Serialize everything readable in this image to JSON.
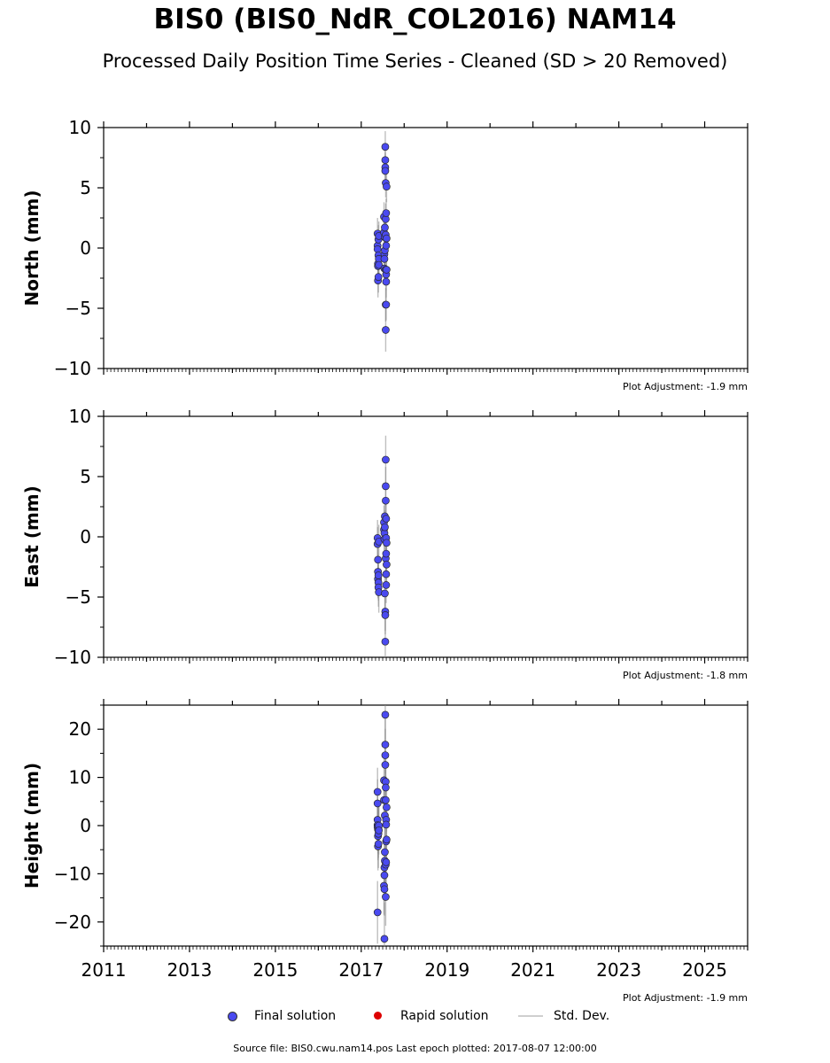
{
  "title": "BIS0 (BIS0_NdR_COL2016) NAM14",
  "subtitle": "Processed Daily Position Time Series - Cleaned (SD > 20 Removed)",
  "legend": {
    "final": "Final solution",
    "rapid": "Rapid solution",
    "std": "Std. Dev."
  },
  "colors": {
    "final": "#4a4af0",
    "rapid": "#dd0000",
    "std": "#cfcfcf"
  },
  "footer": "Source file: BIS0.cwu.nam14.pos  Last epoch plotted: 2017-08-07 12:00:00",
  "chart_data": [
    {
      "type": "scatter",
      "ylabel": "North (mm)",
      "xlim": [
        2011,
        2026
      ],
      "ylim": [
        -10,
        10
      ],
      "yticks": [
        -10,
        -5,
        0,
        5,
        10
      ],
      "xticks": [
        2011,
        2013,
        2015,
        2017,
        2019,
        2021,
        2023,
        2025
      ],
      "show_x_ticklabels": false,
      "adjustment": "Plot Adjustment: -1.9 mm",
      "series": [
        {
          "name": "Final solution",
          "points": [
            {
              "x": 2017.38,
              "y": 1.2,
              "sd": 1.3
            },
            {
              "x": 2017.38,
              "y": 0.2,
              "sd": 1.2
            },
            {
              "x": 2017.38,
              "y": -0.1,
              "sd": 1.2
            },
            {
              "x": 2017.39,
              "y": -1.3,
              "sd": 1.3
            },
            {
              "x": 2017.39,
              "y": -1.5,
              "sd": 1.2
            },
            {
              "x": 2017.39,
              "y": -2.7,
              "sd": 1.4
            },
            {
              "x": 2017.4,
              "y": 0.7,
              "sd": 1.2
            },
            {
              "x": 2017.4,
              "y": -0.6,
              "sd": 1.3
            },
            {
              "x": 2017.4,
              "y": -2.4,
              "sd": 1.3
            },
            {
              "x": 2017.41,
              "y": 1.0,
              "sd": 1.2
            },
            {
              "x": 2017.41,
              "y": -0.9,
              "sd": 1.2
            },
            {
              "x": 2017.41,
              "y": -1.4,
              "sd": 1.3
            },
            {
              "x": 2017.53,
              "y": 2.6,
              "sd": 1.2
            },
            {
              "x": 2017.53,
              "y": 1.3,
              "sd": 1.3
            },
            {
              "x": 2017.54,
              "y": -0.5,
              "sd": 1.2
            },
            {
              "x": 2017.54,
              "y": -0.9,
              "sd": 1.3
            },
            {
              "x": 2017.54,
              "y": -1.7,
              "sd": 1.2
            },
            {
              "x": 2017.55,
              "y": 1.7,
              "sd": 1.3
            },
            {
              "x": 2017.55,
              "y": 0.9,
              "sd": 1.2
            },
            {
              "x": 2017.55,
              "y": -0.2,
              "sd": 1.2
            },
            {
              "x": 2017.56,
              "y": 8.4,
              "sd": 1.3
            },
            {
              "x": 2017.56,
              "y": 7.3,
              "sd": 1.3
            },
            {
              "x": 2017.56,
              "y": 6.7,
              "sd": 1.2
            },
            {
              "x": 2017.56,
              "y": 6.4,
              "sd": 1.2
            },
            {
              "x": 2017.57,
              "y": 5.4,
              "sd": 1.2
            },
            {
              "x": 2017.57,
              "y": 2.4,
              "sd": 1.3
            },
            {
              "x": 2017.57,
              "y": 1.1,
              "sd": 1.2
            },
            {
              "x": 2017.57,
              "y": -1.8,
              "sd": 1.3
            },
            {
              "x": 2017.57,
              "y": -4.7,
              "sd": 1.4
            },
            {
              "x": 2017.57,
              "y": -6.8,
              "sd": 1.8
            },
            {
              "x": 2017.58,
              "y": 2.9,
              "sd": 1.2
            },
            {
              "x": 2017.58,
              "y": 0.2,
              "sd": 1.2
            },
            {
              "x": 2017.58,
              "y": -2.2,
              "sd": 1.3
            },
            {
              "x": 2017.58,
              "y": -2.8,
              "sd": 1.3
            },
            {
              "x": 2017.58,
              "y": -4.7,
              "sd": 1.3
            },
            {
              "x": 2017.59,
              "y": 5.1,
              "sd": 1.3
            },
            {
              "x": 2017.59,
              "y": 0.8,
              "sd": 1.2
            },
            {
              "x": 2017.59,
              "y": -1.8,
              "sd": 1.2
            }
          ]
        }
      ]
    },
    {
      "type": "scatter",
      "ylabel": "East (mm)",
      "xlim": [
        2011,
        2026
      ],
      "ylim": [
        -10,
        10
      ],
      "yticks": [
        -10,
        -5,
        0,
        5,
        10
      ],
      "xticks": [
        2011,
        2013,
        2015,
        2017,
        2019,
        2021,
        2023,
        2025
      ],
      "show_x_ticklabels": false,
      "adjustment": "Plot Adjustment: -1.8 mm",
      "series": [
        {
          "name": "Final solution",
          "points": [
            {
              "x": 2017.38,
              "y": -0.1,
              "sd": 1.5
            },
            {
              "x": 2017.38,
              "y": -0.6,
              "sd": 1.4
            },
            {
              "x": 2017.39,
              "y": -1.9,
              "sd": 1.5
            },
            {
              "x": 2017.39,
              "y": -2.9,
              "sd": 1.5
            },
            {
              "x": 2017.39,
              "y": -3.5,
              "sd": 1.6
            },
            {
              "x": 2017.4,
              "y": -3.2,
              "sd": 1.5
            },
            {
              "x": 2017.4,
              "y": -3.8,
              "sd": 1.5
            },
            {
              "x": 2017.4,
              "y": -4.2,
              "sd": 1.6
            },
            {
              "x": 2017.41,
              "y": -4.6,
              "sd": 1.7
            },
            {
              "x": 2017.41,
              "y": -0.4,
              "sd": 1.4
            },
            {
              "x": 2017.53,
              "y": 0.6,
              "sd": 1.4
            },
            {
              "x": 2017.53,
              "y": 1.2,
              "sd": 1.4
            },
            {
              "x": 2017.54,
              "y": 0.3,
              "sd": 1.4
            },
            {
              "x": 2017.54,
              "y": -0.2,
              "sd": 1.4
            },
            {
              "x": 2017.55,
              "y": 1.7,
              "sd": 1.4
            },
            {
              "x": 2017.55,
              "y": 0.8,
              "sd": 1.4
            },
            {
              "x": 2017.55,
              "y": -4.7,
              "sd": 1.5
            },
            {
              "x": 2017.56,
              "y": -8.7,
              "sd": 1.9
            },
            {
              "x": 2017.56,
              "y": -6.2,
              "sd": 1.6
            },
            {
              "x": 2017.56,
              "y": -6.5,
              "sd": 1.6
            },
            {
              "x": 2017.57,
              "y": 6.4,
              "sd": 2.0
            },
            {
              "x": 2017.57,
              "y": 4.2,
              "sd": 1.6
            },
            {
              "x": 2017.57,
              "y": 3.0,
              "sd": 1.5
            },
            {
              "x": 2017.57,
              "y": -1.8,
              "sd": 1.4
            },
            {
              "x": 2017.58,
              "y": 1.5,
              "sd": 1.4
            },
            {
              "x": 2017.58,
              "y": -0.1,
              "sd": 1.4
            },
            {
              "x": 2017.58,
              "y": -1.4,
              "sd": 1.4
            },
            {
              "x": 2017.58,
              "y": -3.1,
              "sd": 1.5
            },
            {
              "x": 2017.58,
              "y": -4.0,
              "sd": 1.5
            },
            {
              "x": 2017.59,
              "y": -0.5,
              "sd": 1.4
            },
            {
              "x": 2017.59,
              "y": -2.3,
              "sd": 1.5
            }
          ]
        }
      ]
    },
    {
      "type": "scatter",
      "ylabel": "Height (mm)",
      "xlim": [
        2011,
        2026
      ],
      "ylim": [
        -25,
        25
      ],
      "yticks": [
        -20,
        -10,
        0,
        10,
        20
      ],
      "xticks": [
        2011,
        2013,
        2015,
        2017,
        2019,
        2021,
        2023,
        2025
      ],
      "show_x_ticklabels": true,
      "adjustment": "Plot Adjustment: -1.9 mm",
      "series": [
        {
          "name": "Final solution",
          "points": [
            {
              "x": 2017.38,
              "y": 7.0,
              "sd": 5.0
            },
            {
              "x": 2017.38,
              "y": 4.6,
              "sd": 5.0
            },
            {
              "x": 2017.38,
              "y": 1.2,
              "sd": 5.0
            },
            {
              "x": 2017.38,
              "y": 0.1,
              "sd": 5.0
            },
            {
              "x": 2017.38,
              "y": -0.3,
              "sd": 5.0
            },
            {
              "x": 2017.38,
              "y": -18.0,
              "sd": 6.5
            },
            {
              "x": 2017.39,
              "y": -0.8,
              "sd": 5.0
            },
            {
              "x": 2017.39,
              "y": -2.2,
              "sd": 5.0
            },
            {
              "x": 2017.39,
              "y": -4.3,
              "sd": 5.0
            },
            {
              "x": 2017.4,
              "y": -0.5,
              "sd": 5.0
            },
            {
              "x": 2017.4,
              "y": -1.7,
              "sd": 5.0
            },
            {
              "x": 2017.4,
              "y": -3.8,
              "sd": 5.0
            },
            {
              "x": 2017.41,
              "y": 0.0,
              "sd": 5.0
            },
            {
              "x": 2017.41,
              "y": -1.0,
              "sd": 5.0
            },
            {
              "x": 2017.53,
              "y": 9.4,
              "sd": 5.0
            },
            {
              "x": 2017.53,
              "y": 5.3,
              "sd": 5.0
            },
            {
              "x": 2017.53,
              "y": -12.5,
              "sd": 6.0
            },
            {
              "x": 2017.54,
              "y": -8.7,
              "sd": 5.0
            },
            {
              "x": 2017.54,
              "y": -10.3,
              "sd": 5.0
            },
            {
              "x": 2017.54,
              "y": -13.2,
              "sd": 5.5
            },
            {
              "x": 2017.54,
              "y": -23.5,
              "sd": 7.5
            },
            {
              "x": 2017.55,
              "y": -7.3,
              "sd": 5.0
            },
            {
              "x": 2017.55,
              "y": -5.5,
              "sd": 5.0
            },
            {
              "x": 2017.55,
              "y": 2.1,
              "sd": 5.0
            },
            {
              "x": 2017.56,
              "y": 23.0,
              "sd": 7.5
            },
            {
              "x": 2017.56,
              "y": 16.8,
              "sd": 6.0
            },
            {
              "x": 2017.56,
              "y": 14.6,
              "sd": 5.5
            },
            {
              "x": 2017.56,
              "y": 12.6,
              "sd": 5.0
            },
            {
              "x": 2017.57,
              "y": 9.1,
              "sd": 5.0
            },
            {
              "x": 2017.57,
              "y": 7.9,
              "sd": 5.0
            },
            {
              "x": 2017.57,
              "y": 5.3,
              "sd": 5.0
            },
            {
              "x": 2017.57,
              "y": -14.8,
              "sd": 6.0
            },
            {
              "x": 2017.57,
              "y": -8.1,
              "sd": 5.0
            },
            {
              "x": 2017.58,
              "y": 1.2,
              "sd": 5.0
            },
            {
              "x": 2017.58,
              "y": 0.2,
              "sd": 5.0
            },
            {
              "x": 2017.58,
              "y": -3.3,
              "sd": 5.0
            },
            {
              "x": 2017.58,
              "y": -7.6,
              "sd": 5.0
            },
            {
              "x": 2017.59,
              "y": 3.8,
              "sd": 5.0
            },
            {
              "x": 2017.59,
              "y": -2.9,
              "sd": 5.0
            }
          ]
        }
      ]
    }
  ]
}
